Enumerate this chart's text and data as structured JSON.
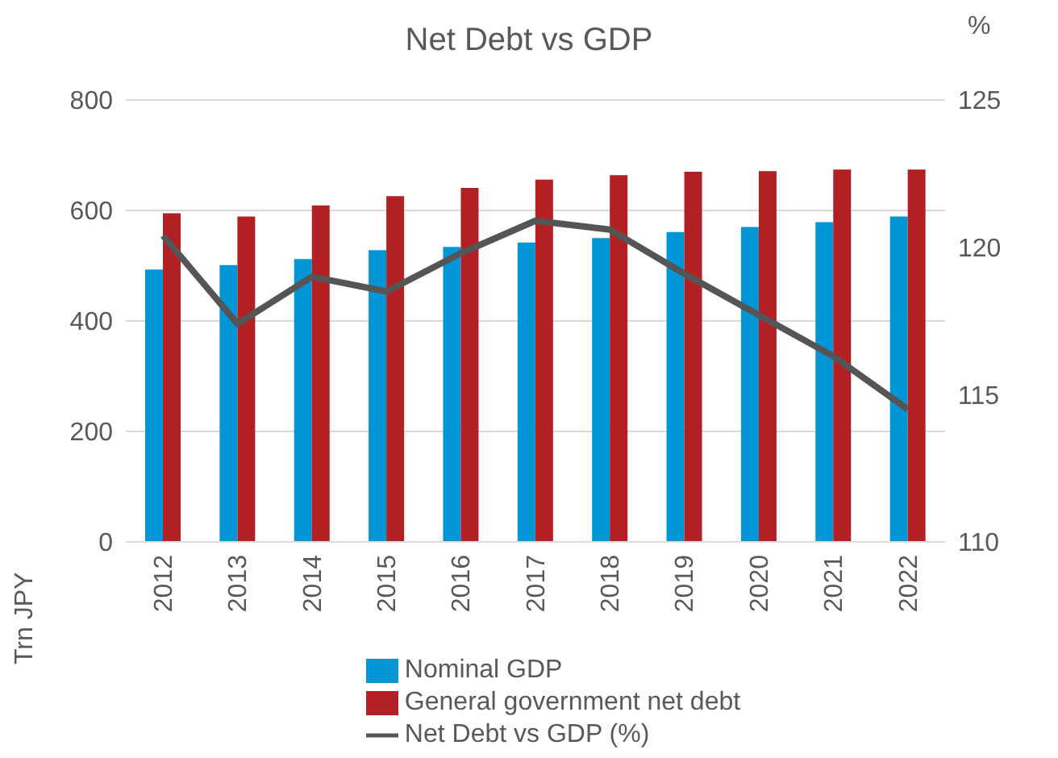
{
  "chart_data": {
    "type": "bar",
    "title": "Net Debt vs GDP",
    "ylabel": "Trn JPY",
    "y2label": "%",
    "categories": [
      "2012",
      "2013",
      "2014",
      "2015",
      "2016",
      "2017",
      "2018",
      "2019",
      "2020",
      "2021",
      "2022"
    ],
    "series": [
      {
        "name": "Nominal GDP",
        "color": "#0096d6",
        "values": [
          493,
          501,
          512,
          528,
          534,
          542,
          550,
          561,
          570,
          579,
          589
        ]
      },
      {
        "name": "General government net debt",
        "color": "#b22024",
        "values": [
          595,
          589,
          609,
          626,
          641,
          656,
          664,
          670,
          671,
          674,
          674
        ]
      },
      {
        "name": "Net Debt vs GDP (%)",
        "type": "line",
        "axis": "y2",
        "color": "#555555",
        "marker": "none",
        "values": [
          120.4,
          117.4,
          119.0,
          118.5,
          119.8,
          120.9,
          120.6,
          119.1,
          117.7,
          116.3,
          114.5
        ]
      }
    ],
    "ylim": [
      0,
      800
    ],
    "yticks": [
      0,
      200,
      400,
      600,
      800
    ],
    "y2lim": [
      110,
      125
    ],
    "y2ticks": [
      110,
      115,
      120,
      125
    ],
    "grid": "y",
    "legend": "bottom"
  }
}
